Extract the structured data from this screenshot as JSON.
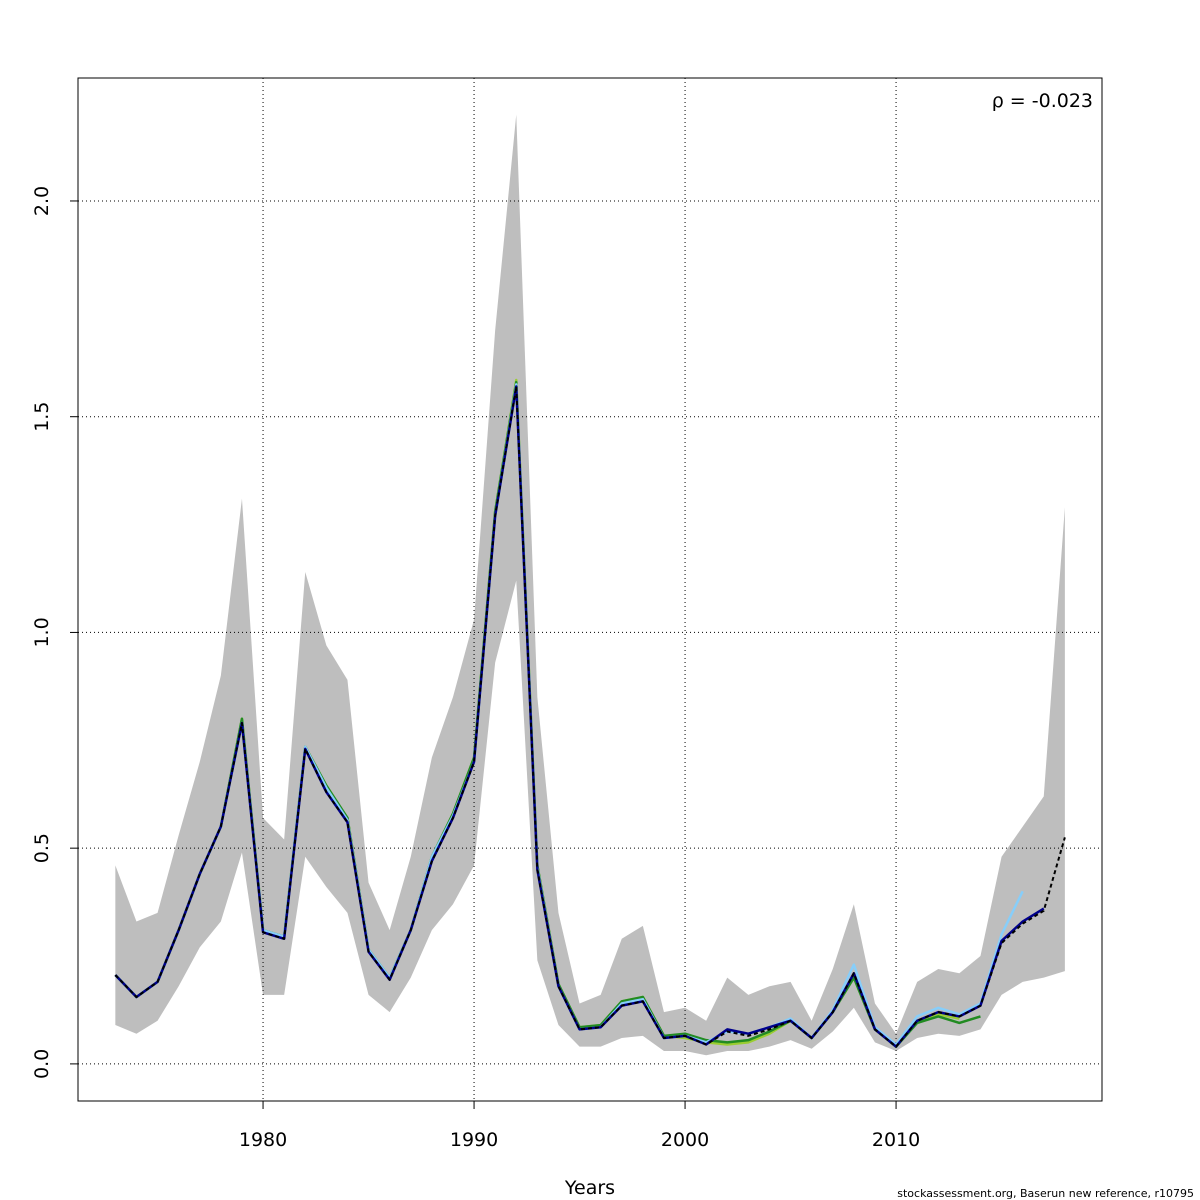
{
  "chart_data": {
    "type": "line",
    "annotation": "ρ = -0.023",
    "x_label": "Years",
    "footer": "stockassessment.org, Baserun  new  reference, r10795",
    "x": [
      1973,
      1974,
      1975,
      1976,
      1977,
      1978,
      1979,
      1980,
      1981,
      1982,
      1983,
      1984,
      1985,
      1986,
      1987,
      1988,
      1989,
      1990,
      1991,
      1992,
      1993,
      1994,
      1995,
      1996,
      1997,
      1998,
      1999,
      2000,
      2001,
      2002,
      2003,
      2004,
      2005,
      2006,
      2007,
      2008,
      2009,
      2010,
      2011,
      2012,
      2013,
      2014,
      2015,
      2016,
      2017,
      2018
    ],
    "band": {
      "color": "#bebebe",
      "upper": [
        0.46,
        0.33,
        0.35,
        0.53,
        0.7,
        0.9,
        1.31,
        0.57,
        0.52,
        1.14,
        0.97,
        0.89,
        0.42,
        0.31,
        0.48,
        0.71,
        0.85,
        1.03,
        1.7,
        2.2,
        0.85,
        0.35,
        0.14,
        0.16,
        0.29,
        0.32,
        0.12,
        0.13,
        0.1,
        0.2,
        0.16,
        0.18,
        0.19,
        0.1,
        0.22,
        0.37,
        0.14,
        0.07,
        0.19,
        0.22,
        0.21,
        0.25,
        0.48,
        0.55,
        0.62,
        1.29
      ],
      "lower": [
        0.09,
        0.07,
        0.1,
        0.18,
        0.27,
        0.33,
        0.49,
        0.16,
        0.16,
        0.48,
        0.41,
        0.35,
        0.16,
        0.12,
        0.2,
        0.31,
        0.37,
        0.46,
        0.93,
        1.12,
        0.24,
        0.09,
        0.04,
        0.04,
        0.06,
        0.065,
        0.03,
        0.03,
        0.02,
        0.03,
        0.03,
        0.04,
        0.055,
        0.035,
        0.075,
        0.13,
        0.05,
        0.03,
        0.06,
        0.07,
        0.065,
        0.08,
        0.16,
        0.19,
        0.2,
        0.215
      ]
    },
    "series": [
      {
        "color": "#9acd32",
        "values": [
          0.206,
          0.155,
          0.19,
          0.31,
          0.44,
          0.55,
          0.8,
          0.31,
          0.295,
          0.735,
          0.645,
          0.57,
          0.265,
          0.2,
          0.31,
          0.48,
          0.58,
          0.71,
          1.28,
          1.585,
          0.46,
          0.185,
          0.085,
          0.09,
          0.145,
          0.155,
          0.065,
          0.06,
          0.05,
          0.045,
          0.05,
          0.07,
          0.1,
          0.06,
          0.12,
          0.2,
          0.08,
          0.04,
          0.1,
          0.115,
          0.105,
          null,
          null,
          null,
          null,
          null
        ]
      },
      {
        "color": "#228b22",
        "values": [
          0.206,
          0.155,
          0.19,
          0.31,
          0.44,
          0.55,
          0.8,
          0.31,
          0.295,
          0.735,
          0.645,
          0.57,
          0.265,
          0.2,
          0.31,
          0.48,
          0.58,
          0.71,
          1.28,
          1.58,
          0.46,
          0.185,
          0.085,
          0.09,
          0.145,
          0.155,
          0.065,
          0.07,
          0.055,
          0.05,
          0.055,
          0.075,
          0.1,
          0.06,
          0.12,
          0.2,
          0.08,
          0.04,
          0.095,
          0.11,
          0.095,
          0.11,
          null,
          null,
          null,
          null
        ]
      },
      {
        "color": "#87cefa",
        "values": [
          0.206,
          0.155,
          0.19,
          0.31,
          0.44,
          0.55,
          0.79,
          0.31,
          0.295,
          0.735,
          0.64,
          0.565,
          0.265,
          0.2,
          0.31,
          0.48,
          0.575,
          0.7,
          1.27,
          1.575,
          0.455,
          0.18,
          0.08,
          0.085,
          0.14,
          0.15,
          0.06,
          0.065,
          0.05,
          0.075,
          0.07,
          0.085,
          0.105,
          0.06,
          0.125,
          0.23,
          0.085,
          0.045,
          0.11,
          0.13,
          0.115,
          0.14,
          0.3,
          0.4,
          null,
          null
        ]
      },
      {
        "color": "#00008b",
        "values": [
          0.206,
          0.155,
          0.19,
          0.31,
          0.44,
          0.55,
          0.79,
          0.305,
          0.29,
          0.73,
          0.63,
          0.56,
          0.26,
          0.195,
          0.31,
          0.47,
          0.57,
          0.7,
          1.27,
          1.57,
          0.45,
          0.18,
          0.08,
          0.085,
          0.135,
          0.145,
          0.06,
          0.065,
          0.045,
          0.08,
          0.07,
          0.085,
          0.1,
          0.06,
          0.12,
          0.21,
          0.08,
          0.04,
          0.1,
          0.12,
          0.11,
          0.135,
          0.285,
          0.33,
          0.36,
          null
        ]
      },
      {
        "color": "#000000",
        "dashed": true,
        "values": [
          0.206,
          0.155,
          0.19,
          0.31,
          0.44,
          0.55,
          0.79,
          0.305,
          0.29,
          0.73,
          0.63,
          0.56,
          0.26,
          0.195,
          0.31,
          0.47,
          0.57,
          0.7,
          1.27,
          1.57,
          0.45,
          0.18,
          0.08,
          0.085,
          0.135,
          0.145,
          0.06,
          0.065,
          0.045,
          0.075,
          0.065,
          0.08,
          0.1,
          0.06,
          0.12,
          0.21,
          0.08,
          0.04,
          0.1,
          0.12,
          0.11,
          0.135,
          0.28,
          0.325,
          0.355,
          0.525
        ]
      }
    ],
    "xlim": [
      1971.23,
      2019.76
    ],
    "xticks": [
      1980,
      1990,
      2000,
      2010
    ],
    "ylim": [
      -0.086,
      2.285
    ],
    "yticks": [
      {
        "value": 0,
        "label": "0.0"
      },
      0.5,
      {
        "value": 1,
        "label": "1.0"
      },
      1.5,
      {
        "value": 2,
        "label": "2.0"
      }
    ],
    "grid": true
  }
}
